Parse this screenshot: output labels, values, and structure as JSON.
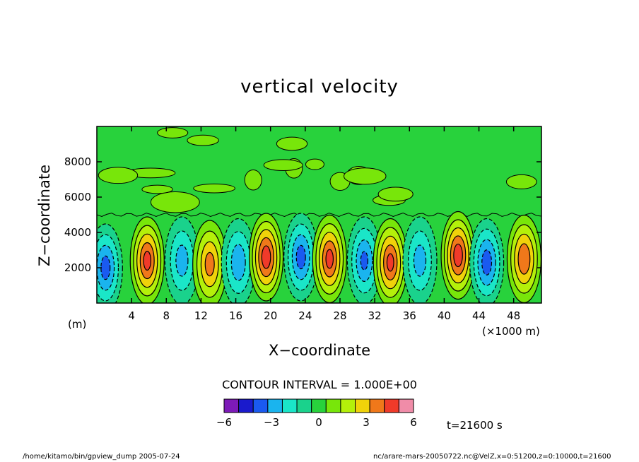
{
  "chart_data": {
    "type": "heatmap",
    "title": "vertical velocity",
    "xlabel": "X−coordinate",
    "ylabel": "Z−coordinate",
    "x_unit_label": "(×1000 m)",
    "y_unit_label": "(m)",
    "xlim": [
      0,
      51.2
    ],
    "ylim": [
      0,
      10000
    ],
    "x_ticks": [
      4,
      8,
      12,
      16,
      20,
      24,
      28,
      32,
      36,
      40,
      44,
      48
    ],
    "x_tick_labels": [
      "4",
      "8",
      "12",
      "16",
      "20",
      "24",
      "28",
      "32",
      "36",
      "40",
      "44",
      "48"
    ],
    "y_ticks": [
      2000,
      4000,
      6000,
      8000
    ],
    "y_tick_labels": [
      "2000",
      "4000",
      "6000",
      "8000"
    ],
    "contour_interval_label": "CONTOUR INTERVAL = 1.000E+00",
    "colorbar": {
      "min": -6,
      "max": 6,
      "labels": [
        "−6",
        "−3",
        "0",
        "3",
        "6"
      ],
      "label_values": [
        -6,
        -3,
        0,
        3,
        6
      ],
      "colors": [
        "#7d1ab8",
        "#1a1acc",
        "#1a5af0",
        "#1ab4ee",
        "#1ae6c8",
        "#1ad28c",
        "#28d23c",
        "#78e60a",
        "#b4f00a",
        "#f0d20a",
        "#f0781a",
        "#f03a2a",
        "#f08ca8"
      ]
    },
    "cells": [
      {
        "x": 1.0,
        "z": 2000,
        "w": -3.5
      },
      {
        "x": 5.8,
        "z": 2400,
        "w": 4.5
      },
      {
        "x": 9.8,
        "z": 2400,
        "w": -2.5
      },
      {
        "x": 13.0,
        "z": 2200,
        "w": 3.5
      },
      {
        "x": 16.3,
        "z": 2300,
        "w": -2.8
      },
      {
        "x": 19.5,
        "z": 2600,
        "w": 4.8
      },
      {
        "x": 23.5,
        "z": 2600,
        "w": -3.5
      },
      {
        "x": 26.8,
        "z": 2500,
        "w": 4.5
      },
      {
        "x": 30.8,
        "z": 2400,
        "w": -3.2
      },
      {
        "x": 33.8,
        "z": 2300,
        "w": 4.4
      },
      {
        "x": 37.2,
        "z": 2400,
        "w": -2.5
      },
      {
        "x": 41.6,
        "z": 2700,
        "w": 4.8
      },
      {
        "x": 44.9,
        "z": 2300,
        "w": -3.6
      },
      {
        "x": 49.2,
        "z": 2500,
        "w": 4.0
      }
    ],
    "time_label": "t=21600 s"
  },
  "footer": {
    "left": "/home/kitamo/bin/gpview_dump  2005-07-24",
    "right": "nc/arare-mars-20050722.nc@VelZ,x=0:51200,z=0:10000,t=21600"
  }
}
